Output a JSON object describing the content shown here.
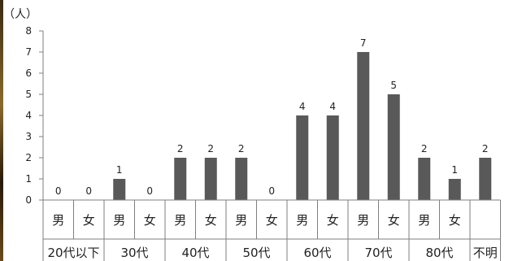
{
  "chart_data": {
    "type": "bar",
    "unit_label": "（人）",
    "ylim": [
      0,
      8
    ],
    "yticks": [
      0,
      1,
      2,
      3,
      4,
      5,
      6,
      7,
      8
    ],
    "categories": [
      {
        "sex": "男",
        "age": "20代以下",
        "value": 0
      },
      {
        "sex": "女",
        "age": "20代以下",
        "value": 0
      },
      {
        "sex": "男",
        "age": "30代",
        "value": 1
      },
      {
        "sex": "女",
        "age": "30代",
        "value": 0
      },
      {
        "sex": "男",
        "age": "40代",
        "value": 2
      },
      {
        "sex": "女",
        "age": "40代",
        "value": 2
      },
      {
        "sex": "男",
        "age": "50代",
        "value": 2
      },
      {
        "sex": "女",
        "age": "50代",
        "value": 0
      },
      {
        "sex": "男",
        "age": "60代",
        "value": 4
      },
      {
        "sex": "女",
        "age": "60代",
        "value": 4
      },
      {
        "sex": "男",
        "age": "70代",
        "value": 7
      },
      {
        "sex": "女",
        "age": "70代",
        "value": 5
      },
      {
        "sex": "男",
        "age": "80代",
        "value": 2
      },
      {
        "sex": "女",
        "age": "80代",
        "value": 1
      },
      {
        "sex": "",
        "age": "不明",
        "value": 2
      }
    ],
    "groups": [
      "20代以下",
      "30代",
      "40代",
      "50代",
      "60代",
      "70代",
      "80代",
      "不明"
    ],
    "bar_color": "#595959",
    "grid": false,
    "legend": "none"
  }
}
